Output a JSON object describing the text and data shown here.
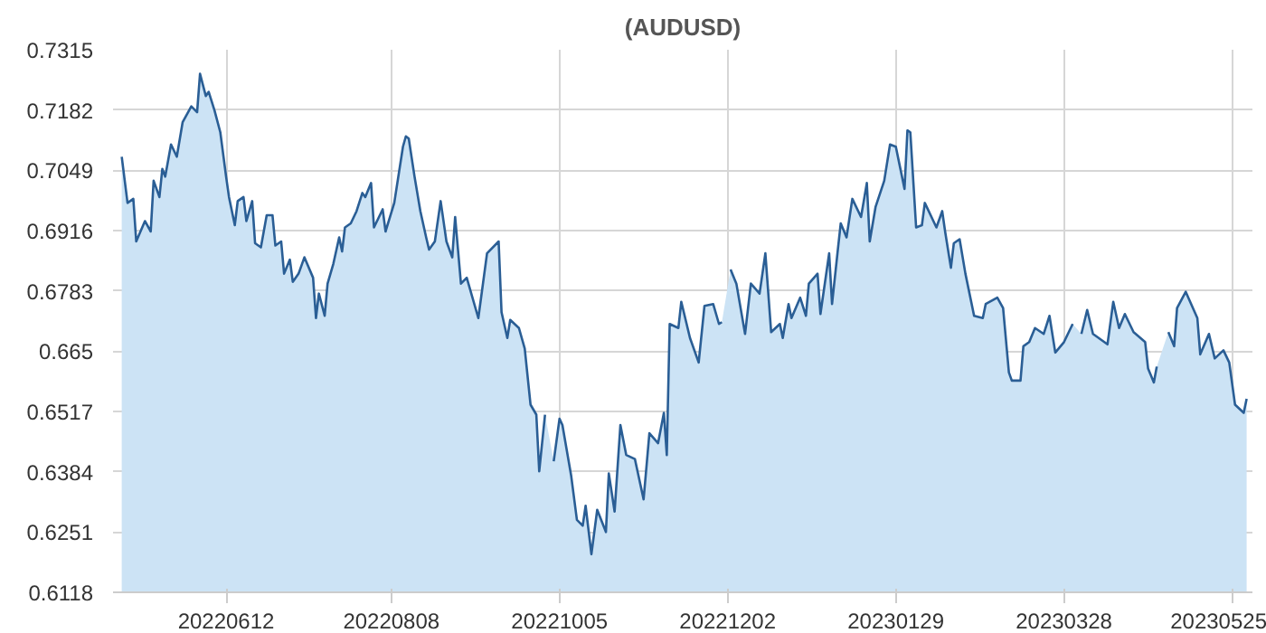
{
  "chart_data": {
    "type": "area",
    "title": "(AUDUSD)",
    "x": [
      "2022-05-07",
      "2022-05-09",
      "2022-05-11",
      "2022-05-12",
      "2022-05-15",
      "2022-05-17",
      "2022-05-18",
      "2022-05-20",
      "2022-05-21",
      "2022-05-22",
      "2022-05-24",
      "2022-05-26",
      "2022-05-28",
      "2022-05-31",
      "2022-06-02",
      "2022-06-03",
      "2022-06-05",
      "2022-06-06",
      "2022-06-08",
      "2022-06-10",
      "2022-06-12",
      "2022-06-13",
      "2022-06-15",
      "2022-06-16",
      "2022-06-18",
      "2022-06-19",
      "2022-06-21",
      "2022-06-22",
      "2022-06-24",
      "2022-06-26",
      "2022-06-28",
      "2022-06-29",
      "2022-07-01",
      "2022-07-02",
      "2022-07-04",
      "2022-07-05",
      "2022-07-07",
      "2022-07-09",
      "2022-07-12",
      "2022-07-13",
      "2022-07-14",
      "2022-07-16",
      "2022-07-17",
      "2022-07-19",
      "2022-07-21",
      "2022-07-22",
      "2022-07-23",
      "2022-07-25",
      "2022-07-27",
      "2022-07-29",
      "2022-07-30",
      "2022-08-01",
      "2022-08-02",
      "2022-08-05",
      "2022-08-06",
      "2022-08-09",
      "2022-08-12",
      "2022-08-13",
      "2022-08-14",
      "2022-08-16",
      "2022-08-18",
      "2022-08-20",
      "2022-08-21",
      "2022-08-23",
      "2022-08-25",
      "2022-08-27",
      "2022-08-29",
      "2022-08-30",
      "2022-09-01",
      "2022-09-03",
      "2022-09-07",
      "2022-09-10",
      "2022-09-14",
      "2022-09-15",
      "2022-09-17",
      "2022-09-18",
      "2022-09-21",
      "2022-09-23",
      "2022-09-25",
      "2022-09-27",
      "2022-09-28",
      "2022-09-30",
      "2022-10-01",
      "2022-10-03",
      "2022-10-05",
      "2022-10-06",
      "2022-10-09",
      "2022-10-11",
      "2022-10-13",
      "2022-10-14",
      "2022-10-16",
      "2022-10-18",
      "2022-10-21",
      "2022-10-22",
      "2022-10-24",
      "2022-10-26",
      "2022-10-28",
      "2022-10-31",
      "2022-11-03",
      "2022-11-05",
      "2022-11-08",
      "2022-11-10",
      "2022-11-11",
      "2022-11-12",
      "2022-11-15",
      "2022-11-16",
      "2022-11-19",
      "2022-11-22",
      "2022-11-24",
      "2022-11-27",
      "2022-11-29",
      "2022-11-30",
      "2022-12-01",
      "2022-12-03",
      "2022-12-05",
      "2022-12-08",
      "2022-12-10",
      "2022-12-13",
      "2022-12-15",
      "2022-12-17",
      "2022-12-20",
      "2022-12-21",
      "2022-12-23",
      "2022-12-24",
      "2022-12-27",
      "2022-12-29",
      "2022-12-30",
      "2023-01-02",
      "2023-01-03",
      "2023-01-06",
      "2023-01-07",
      "2023-01-09",
      "2023-01-10",
      "2023-01-12",
      "2023-01-14",
      "2023-01-17",
      "2023-01-19",
      "2023-01-20",
      "2023-01-22",
      "2023-01-25",
      "2023-01-27",
      "2023-01-29",
      "2023-02-01",
      "2023-02-02",
      "2023-02-03",
      "2023-02-05",
      "2023-02-07",
      "2023-02-08",
      "2023-02-12",
      "2023-02-14",
      "2023-02-15",
      "2023-02-17",
      "2023-02-18",
      "2023-02-20",
      "2023-02-22",
      "2023-02-25",
      "2023-02-28",
      "2023-03-01",
      "2023-03-05",
      "2023-03-07",
      "2023-03-09",
      "2023-03-10",
      "2023-03-13",
      "2023-03-14",
      "2023-03-16",
      "2023-03-18",
      "2023-03-21",
      "2023-03-23",
      "2023-03-25",
      "2023-03-28",
      "2023-03-31",
      "2023-04-02",
      "2023-04-03",
      "2023-04-05",
      "2023-04-07",
      "2023-04-12",
      "2023-04-14",
      "2023-04-16",
      "2023-04-18",
      "2023-04-21",
      "2023-04-25",
      "2023-04-26",
      "2023-04-28",
      "2023-04-29",
      "2023-04-30",
      "2023-05-03",
      "2023-05-05",
      "2023-05-06",
      "2023-05-09",
      "2023-05-13",
      "2023-05-14",
      "2023-05-17",
      "2023-05-19",
      "2023-05-22",
      "2023-05-24",
      "2023-05-26",
      "2023-05-29",
      "2023-05-30"
    ],
    "series": [
      {
        "color": "#2a5e95",
        "values": [
          0.7079,
          0.6977,
          0.6986,
          0.6892,
          0.6937,
          0.6914,
          0.7026,
          0.699,
          0.7052,
          0.7035,
          0.7106,
          0.7079,
          0.7155,
          0.719,
          0.7177,
          0.7262,
          0.7213,
          0.7222,
          0.7181,
          0.7133,
          0.7035,
          0.699,
          0.6928,
          0.6981,
          0.699,
          0.6937,
          0.6981,
          0.6888,
          0.6879,
          0.695,
          0.695,
          0.6883,
          0.6892,
          0.6821,
          0.6852,
          0.6803,
          0.6821,
          0.6857,
          0.6812,
          0.6723,
          0.6777,
          0.6728,
          0.6799,
          0.6843,
          0.6901,
          0.687,
          0.6923,
          0.6932,
          0.6959,
          0.6999,
          0.699,
          0.7021,
          0.6923,
          0.6963,
          0.6914,
          0.6977,
          0.7101,
          0.7124,
          0.7119,
          0.7035,
          0.6959,
          0.6901,
          0.6874,
          0.6892,
          0.6981,
          0.6892,
          0.6857,
          0.6946,
          0.6799,
          0.6812,
          0.6723,
          0.6866,
          0.6892,
          0.6736,
          0.6679,
          0.6719,
          0.6701,
          0.6656,
          0.6532,
          0.651,
          0.6385,
          0.651,
          null,
          0.6407,
          0.6501,
          0.6487,
          0.6376,
          0.6278,
          0.6265,
          0.6309,
          0.6202,
          0.63,
          0.6251,
          0.638,
          0.6296,
          0.6487,
          0.6421,
          0.6412,
          0.6323,
          0.6469,
          0.6447,
          0.6514,
          0.6421,
          0.671,
          0.6701,
          0.6759,
          0.6679,
          0.6625,
          0.675,
          0.6754,
          0.671,
          0.6714,
          null,
          0.683,
          0.6799,
          0.6688,
          0.6799,
          0.6777,
          0.6866,
          0.6692,
          0.671,
          0.6679,
          0.6754,
          0.6723,
          0.6768,
          0.6728,
          0.6799,
          0.6821,
          0.6732,
          0.6866,
          0.6754,
          0.6874,
          0.6932,
          0.6901,
          0.6986,
          0.6946,
          0.7021,
          0.6892,
          0.6968,
          0.7026,
          0.7106,
          0.7101,
          0.7008,
          0.7137,
          0.7133,
          0.6923,
          0.6928,
          0.6977,
          0.6923,
          0.6959,
          0.6914,
          0.6834,
          0.6888,
          0.6897,
          0.6821,
          0.6728,
          0.6723,
          0.6754,
          0.6768,
          0.6745,
          0.6603,
          0.6585,
          0.6585,
          0.6661,
          0.667,
          0.6701,
          0.6688,
          0.6728,
          0.6647,
          0.667,
          0.671,
          null,
          0.6688,
          0.6741,
          0.6688,
          0.6665,
          0.6759,
          0.6701,
          0.6732,
          0.6692,
          0.667,
          0.6612,
          0.6581,
          0.6616,
          null,
          0.6692,
          0.6661,
          0.6745,
          0.6781,
          0.6723,
          0.6643,
          0.6688,
          0.6634,
          0.6652,
          0.6625,
          0.6532,
          0.6514,
          0.6545
        ]
      }
    ],
    "xlim": [
      "2022-05-04",
      "2023-06-01"
    ],
    "xticks": [
      {
        "value": "2022-06-12",
        "label": "20220612"
      },
      {
        "value": "2022-08-08",
        "label": "20220808"
      },
      {
        "value": "2022-10-05",
        "label": "20221005"
      },
      {
        "value": "2022-12-02",
        "label": "20221202"
      },
      {
        "value": "2023-01-29",
        "label": "20230129"
      },
      {
        "value": "2023-03-28",
        "label": "20230328"
      },
      {
        "value": "2023-05-25",
        "label": "20230525"
      }
    ],
    "ylim": [
      0.6118,
      0.7315
    ],
    "yticks": [
      0.6118,
      0.6251,
      0.6384,
      0.6517,
      0.665,
      0.6783,
      0.6916,
      0.7049,
      0.7182,
      0.7315
    ],
    "grid": true
  }
}
